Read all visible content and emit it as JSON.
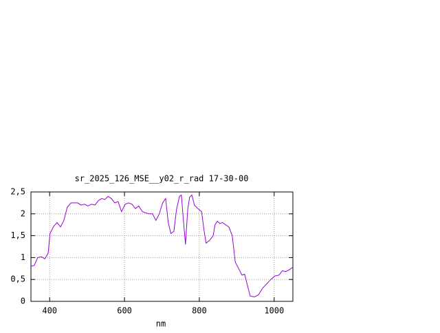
{
  "chart_data": {
    "type": "line",
    "title": "sr_2025_126_MSE__y02_r_rad 17-30-00",
    "x_label": "nm",
    "xlim": [
      350,
      1050
    ],
    "xticks": [
      400,
      600,
      800,
      1000
    ],
    "ylim": [
      0,
      2.5
    ],
    "yticks": [
      0,
      {
        "value": 0.5,
        "label": "0,5"
      },
      1,
      {
        "value": 1.5,
        "label": "1,5"
      },
      2,
      {
        "value": 2.5,
        "label": "2,5"
      }
    ],
    "grid": true,
    "series": [
      {
        "color": "#9400d3",
        "x": [
          350,
          359,
          368,
          378,
          387,
          396,
          401,
          411,
          420,
          429,
          438,
          447,
          457,
          466,
          475,
          484,
          493,
          502,
          512,
          521,
          530,
          539,
          548,
          556,
          565,
          574,
          583,
          592,
          602,
          611,
          620,
          629,
          638,
          648,
          657,
          666,
          675,
          684,
          693,
          702,
          710,
          717,
          724,
          732,
          739,
          747,
          752,
          758,
          763,
          769,
          774,
          780,
          787,
          796,
          806,
          813,
          818,
          828,
          837,
          842,
          848,
          855,
          862,
          870,
          879,
          888,
          896,
          905,
          914,
          921,
          929,
          936,
          947,
          958,
          969,
          980,
          991,
          1002,
          1013,
          1022,
          1031,
          1040,
          1050
        ],
        "values": [
          0.8,
          0.82,
          1.0,
          1.02,
          0.97,
          1.1,
          1.55,
          1.72,
          1.8,
          1.7,
          1.85,
          2.15,
          2.25,
          2.25,
          2.25,
          2.2,
          2.22,
          2.18,
          2.22,
          2.2,
          2.3,
          2.35,
          2.33,
          2.4,
          2.35,
          2.25,
          2.28,
          2.05,
          2.22,
          2.25,
          2.22,
          2.12,
          2.18,
          2.05,
          2.02,
          2.0,
          2.0,
          1.85,
          2.0,
          2.25,
          2.35,
          1.8,
          1.55,
          1.6,
          2.1,
          2.4,
          2.43,
          1.8,
          1.3,
          2.1,
          2.38,
          2.43,
          2.2,
          2.12,
          2.05,
          1.6,
          1.33,
          1.4,
          1.5,
          1.75,
          1.83,
          1.78,
          1.8,
          1.75,
          1.7,
          1.5,
          0.9,
          0.75,
          0.6,
          0.62,
          0.35,
          0.12,
          0.1,
          0.15,
          0.3,
          0.4,
          0.5,
          0.58,
          0.6,
          0.7,
          0.68,
          0.72,
          0.78
        ]
      }
    ]
  }
}
